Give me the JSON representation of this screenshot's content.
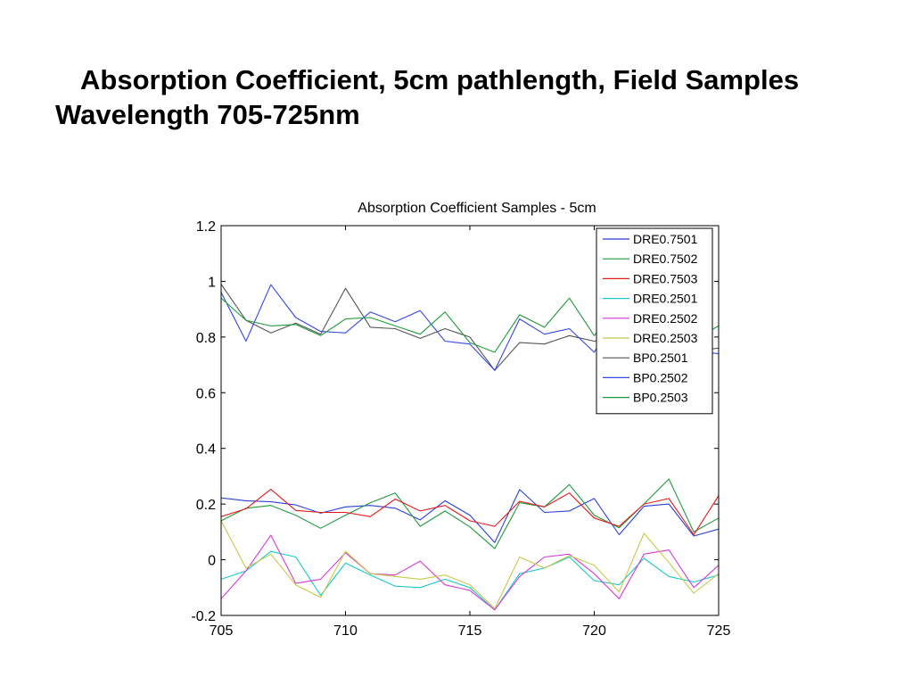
{
  "slide": {
    "title": "Absorption Coefficient, 5cm pathlength, Field Samples Wavelength 705-725nm"
  },
  "chart_data": {
    "type": "line",
    "title": "Absorption Coefficient Samples - 5cm",
    "xlabel": "",
    "ylabel": "",
    "xlim": [
      705,
      725
    ],
    "ylim": [
      -0.2,
      1.2
    ],
    "xticks": [
      "705",
      "710",
      "715",
      "720",
      "725"
    ],
    "yticks": [
      "-0.2",
      "0",
      "0.2",
      "0.4",
      "0.6",
      "0.8",
      "1",
      "1.2"
    ],
    "grid": false,
    "legend_position": "top-right",
    "x": [
      705,
      706,
      707,
      708,
      709,
      710,
      711,
      712,
      713,
      714,
      715,
      716,
      717,
      718,
      719,
      720,
      721,
      722,
      723,
      724,
      725
    ],
    "series": [
      {
        "name": "DRE0.7501",
        "color": "#2b3fd6",
        "values": [
          0.222,
          0.212,
          0.208,
          0.197,
          0.167,
          0.19,
          0.195,
          0.185,
          0.143,
          0.212,
          0.16,
          0.062,
          0.252,
          0.17,
          0.175,
          0.22,
          0.09,
          0.192,
          0.2,
          0.085,
          0.11
        ]
      },
      {
        "name": "DRE0.7502",
        "color": "#1f9a3c",
        "values": [
          0.14,
          0.185,
          0.195,
          0.16,
          0.113,
          0.16,
          0.205,
          0.24,
          0.12,
          0.175,
          0.118,
          0.04,
          0.205,
          0.19,
          0.27,
          0.16,
          0.115,
          0.2,
          0.29,
          0.1,
          0.15
        ]
      },
      {
        "name": "DRE0.7503",
        "color": "#e41a1a",
        "values": [
          0.155,
          0.183,
          0.253,
          0.177,
          0.17,
          0.17,
          0.155,
          0.218,
          0.175,
          0.195,
          0.14,
          0.12,
          0.21,
          0.19,
          0.24,
          0.15,
          0.12,
          0.2,
          0.22,
          0.09,
          0.23
        ]
      },
      {
        "name": "DRE0.2501",
        "color": "#19c9c9",
        "values": [
          -0.07,
          -0.04,
          0.03,
          0.01,
          -0.128,
          -0.012,
          -0.055,
          -0.095,
          -0.1,
          -0.07,
          -0.1,
          -0.18,
          -0.05,
          -0.03,
          0.01,
          -0.075,
          -0.09,
          0.005,
          -0.06,
          -0.08,
          -0.055
        ]
      },
      {
        "name": "DRE0.2502",
        "color": "#d63ad6",
        "values": [
          -0.14,
          -0.04,
          0.088,
          -0.085,
          -0.07,
          0.025,
          -0.05,
          -0.055,
          -0.005,
          -0.09,
          -0.11,
          -0.18,
          -0.06,
          0.01,
          0.02,
          -0.05,
          -0.14,
          0.02,
          0.035,
          -0.1,
          -0.02
        ]
      },
      {
        "name": "DRE0.2503",
        "color": "#c8c84a",
        "values": [
          0.14,
          -0.03,
          0.02,
          -0.09,
          -0.135,
          0.03,
          -0.05,
          -0.06,
          -0.07,
          -0.055,
          -0.09,
          -0.175,
          0.01,
          -0.03,
          0.015,
          -0.02,
          -0.115,
          0.095,
          -0.01,
          -0.12,
          -0.05
        ]
      },
      {
        "name": "BP0.2501",
        "color": "#555555",
        "values": [
          0.99,
          0.86,
          0.815,
          0.85,
          0.81,
          0.975,
          0.835,
          0.83,
          0.795,
          0.83,
          0.8,
          0.68,
          0.78,
          0.775,
          0.805,
          0.785,
          0.8,
          0.77,
          0.76,
          0.75,
          0.76
        ]
      },
      {
        "name": "BP0.2502",
        "color": "#3348e0",
        "values": [
          0.96,
          0.785,
          0.988,
          0.87,
          0.82,
          0.815,
          0.89,
          0.855,
          0.895,
          0.785,
          0.775,
          0.68,
          0.865,
          0.81,
          0.83,
          0.745,
          0.9,
          0.78,
          0.7,
          0.75,
          0.74
        ]
      },
      {
        "name": "BP0.2503",
        "color": "#1f9a3c",
        "values": [
          0.94,
          0.86,
          0.84,
          0.845,
          0.805,
          0.865,
          0.87,
          0.84,
          0.81,
          0.89,
          0.78,
          0.745,
          0.88,
          0.835,
          0.94,
          0.805,
          0.92,
          0.85,
          0.88,
          0.79,
          0.84
        ]
      }
    ]
  }
}
